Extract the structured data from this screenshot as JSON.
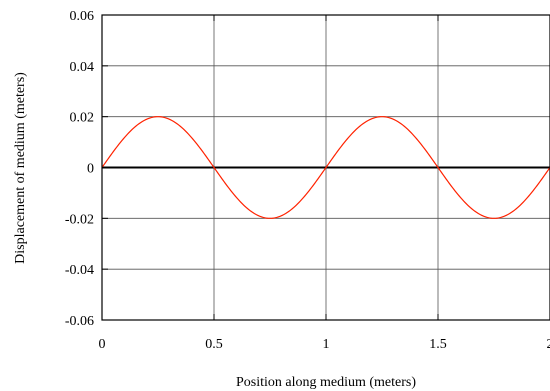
{
  "chart_data": {
    "type": "line",
    "title": "",
    "xlabel": "Position along medium (meters)",
    "ylabel": "Displacement of medium (meters)",
    "xlim": [
      0,
      2
    ],
    "ylim": [
      -0.06,
      0.06
    ],
    "x_ticks": [
      0,
      0.5,
      1,
      1.5,
      2
    ],
    "x_tick_labels": [
      "0",
      "0.5",
      "1",
      "1.5",
      "2"
    ],
    "y_ticks": [
      -0.06,
      -0.04,
      -0.02,
      0,
      0.02,
      0.04,
      0.06
    ],
    "y_tick_labels": [
      "-0.06",
      "-0.04",
      "-0.02",
      "0",
      "0.02",
      "0.04",
      "0.06"
    ],
    "grid": true,
    "zero_line": true,
    "series": [
      {
        "color": "#ff2200",
        "function": "0.02*sin(2*pi*x)",
        "amplitude": 0.02,
        "wavelength": 1,
        "x": [
          0,
          0.125,
          0.25,
          0.375,
          0.5,
          0.625,
          0.75,
          0.875,
          1,
          1.125,
          1.25,
          1.375,
          1.5,
          1.625,
          1.75,
          1.875,
          2
        ],
        "y": [
          0,
          0.0141,
          0.02,
          0.0141,
          0,
          -0.0141,
          -0.02,
          -0.0141,
          0,
          0.0141,
          0.02,
          0.0141,
          0,
          -0.0141,
          -0.02,
          -0.0141,
          0
        ]
      }
    ]
  }
}
